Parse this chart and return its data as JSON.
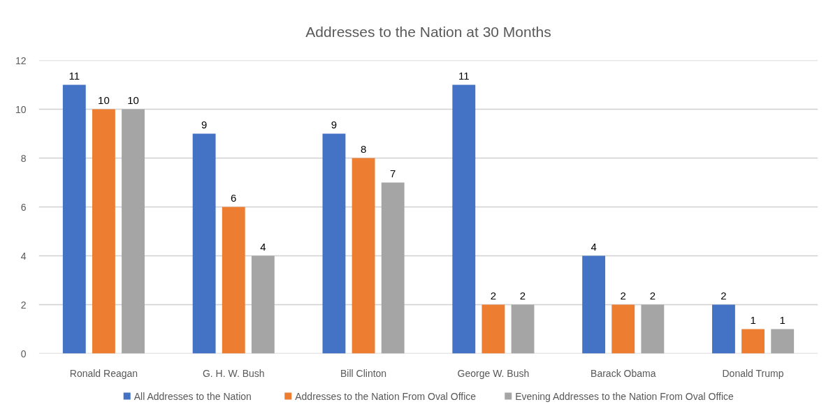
{
  "chart_data": {
    "type": "bar",
    "title": "Addresses to the Nation at 30 Months",
    "categories": [
      "Ronald Reagan",
      "G. H. W. Bush",
      "Bill Clinton",
      "George W. Bush",
      "Barack Obama",
      "Donald Trump"
    ],
    "series": [
      {
        "name": "All Addresses to the Nation",
        "color": "#4472c4",
        "values": [
          11,
          9,
          9,
          11,
          4,
          2
        ]
      },
      {
        "name": "Addresses to the Nation From Oval Office",
        "color": "#ed7d31",
        "values": [
          10,
          6,
          8,
          2,
          2,
          1
        ]
      },
      {
        "name": "Evening Addresses to the Nation From Oval Office",
        "color": "#a5a5a5",
        "values": [
          10,
          4,
          7,
          2,
          2,
          1
        ]
      }
    ],
    "ylim": [
      0,
      12
    ],
    "yticks": [
      0,
      2,
      4,
      6,
      8,
      10,
      12
    ],
    "grid": "y",
    "legend": "bottom",
    "data_labels": true
  }
}
